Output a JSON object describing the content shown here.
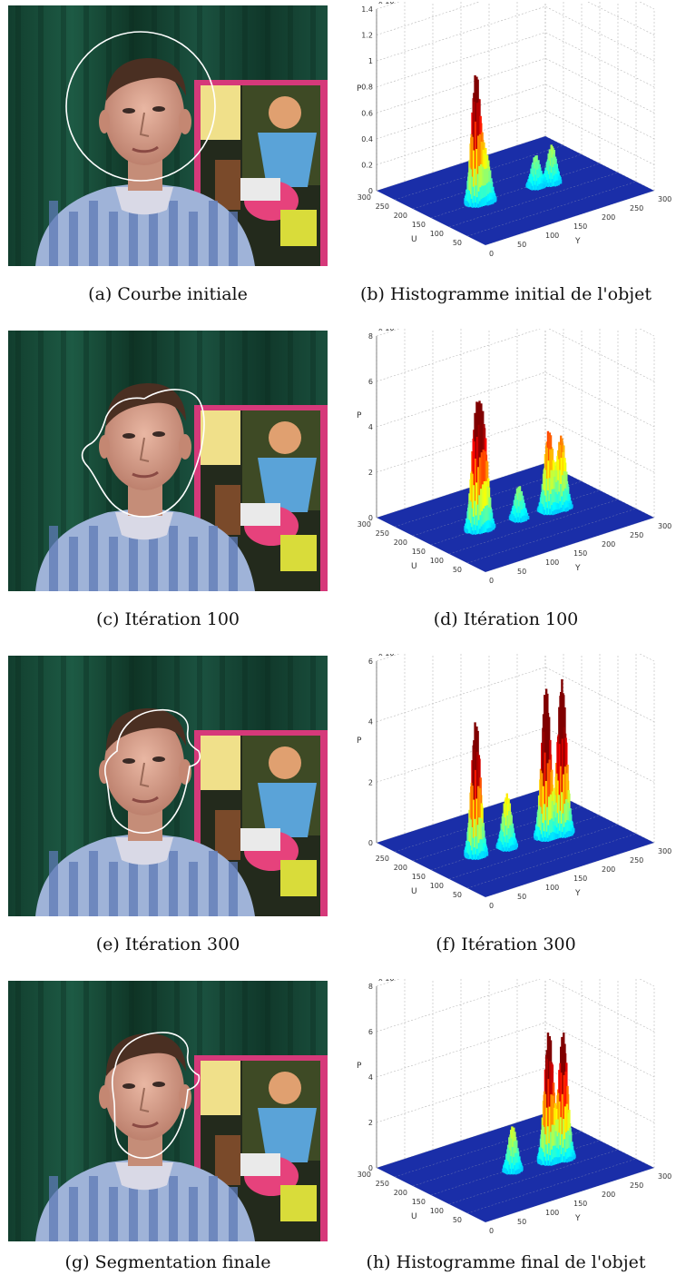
{
  "figures": [
    {
      "photo_caption": "(a) Courbe initiale",
      "plot_caption": "(b) Histogramme initial de l'objet",
      "contour": "circle",
      "chart": {
        "type": "surface3d",
        "z_scale_label": "x 10⁻³",
        "zlabel": "P",
        "xlabel": "U",
        "ylabel": "Y",
        "z_ticks": [
          "0",
          "0.2",
          "0.4",
          "0.6",
          "0.8",
          "1",
          "1.2",
          "1.4"
        ],
        "u_ticks": [
          "50",
          "100",
          "150",
          "200",
          "250",
          "300"
        ],
        "y_ticks": [
          "0",
          "50",
          "100",
          "150",
          "200",
          "250",
          "300"
        ],
        "peaks": [
          {
            "u": 150,
            "y": 80,
            "p": 1.0
          },
          {
            "u": 145,
            "y": 95,
            "p": 0.35
          },
          {
            "u": 140,
            "y": 180,
            "p": 0.25
          },
          {
            "u": 135,
            "y": 205,
            "p": 0.3
          }
        ],
        "zmax": 1.4
      }
    },
    {
      "photo_caption": "(c) Itération 100",
      "plot_caption": "(d) Itération 100",
      "contour": "blob1",
      "chart": {
        "type": "surface3d",
        "z_scale_label": "x 10⁻³",
        "zlabel": "P",
        "xlabel": "U",
        "ylabel": "Y",
        "z_ticks": [
          "0",
          "2",
          "4",
          "6",
          "8"
        ],
        "u_ticks": [
          "50",
          "100",
          "150",
          "200",
          "250",
          "300"
        ],
        "y_ticks": [
          "0",
          "50",
          "100",
          "150",
          "200",
          "250",
          "300"
        ],
        "peaks": [
          {
            "u": 150,
            "y": 80,
            "p": 4.8
          },
          {
            "u": 148,
            "y": 92,
            "p": 4.2
          },
          {
            "u": 140,
            "y": 150,
            "p": 1.5
          },
          {
            "u": 135,
            "y": 200,
            "p": 3.6
          },
          {
            "u": 132,
            "y": 220,
            "p": 3.2
          }
        ],
        "zmax": 8
      }
    },
    {
      "photo_caption": "(e) Itération 300",
      "plot_caption": "(f) Itération 300",
      "contour": "blob2",
      "chart": {
        "type": "surface3d",
        "z_scale_label": "x 10⁻³",
        "zlabel": "P",
        "xlabel": "U",
        "ylabel": "Y",
        "z_ticks": [
          "0",
          "2",
          "4",
          "6"
        ],
        "u_ticks": [
          "50",
          "100",
          "150",
          "200",
          "250"
        ],
        "y_ticks": [
          "0",
          "50",
          "100",
          "150",
          "200",
          "250",
          "300"
        ],
        "peaks": [
          {
            "u": 150,
            "y": 80,
            "p": 4.5
          },
          {
            "u": 142,
            "y": 130,
            "p": 1.8
          },
          {
            "u": 135,
            "y": 195,
            "p": 5.0
          },
          {
            "u": 130,
            "y": 220,
            "p": 5.1
          }
        ],
        "zmax": 6
      }
    },
    {
      "photo_caption": "(g) Segmentation finale",
      "plot_caption": "(h) Histogramme final de l'objet",
      "contour": "blob3",
      "chart": {
        "type": "surface3d",
        "z_scale_label": "x 10⁻³",
        "zlabel": "P",
        "xlabel": "U",
        "ylabel": "Y",
        "z_ticks": [
          "0",
          "2",
          "4",
          "6",
          "8"
        ],
        "u_ticks": [
          "50",
          "100",
          "150",
          "200",
          "250",
          "300"
        ],
        "y_ticks": [
          "0",
          "50",
          "100",
          "150",
          "200",
          "250",
          "300"
        ],
        "peaks": [
          {
            "u": 142,
            "y": 140,
            "p": 2.0
          },
          {
            "u": 135,
            "y": 200,
            "p": 5.8
          },
          {
            "u": 130,
            "y": 222,
            "p": 5.6
          }
        ],
        "zmax": 8
      }
    }
  ]
}
